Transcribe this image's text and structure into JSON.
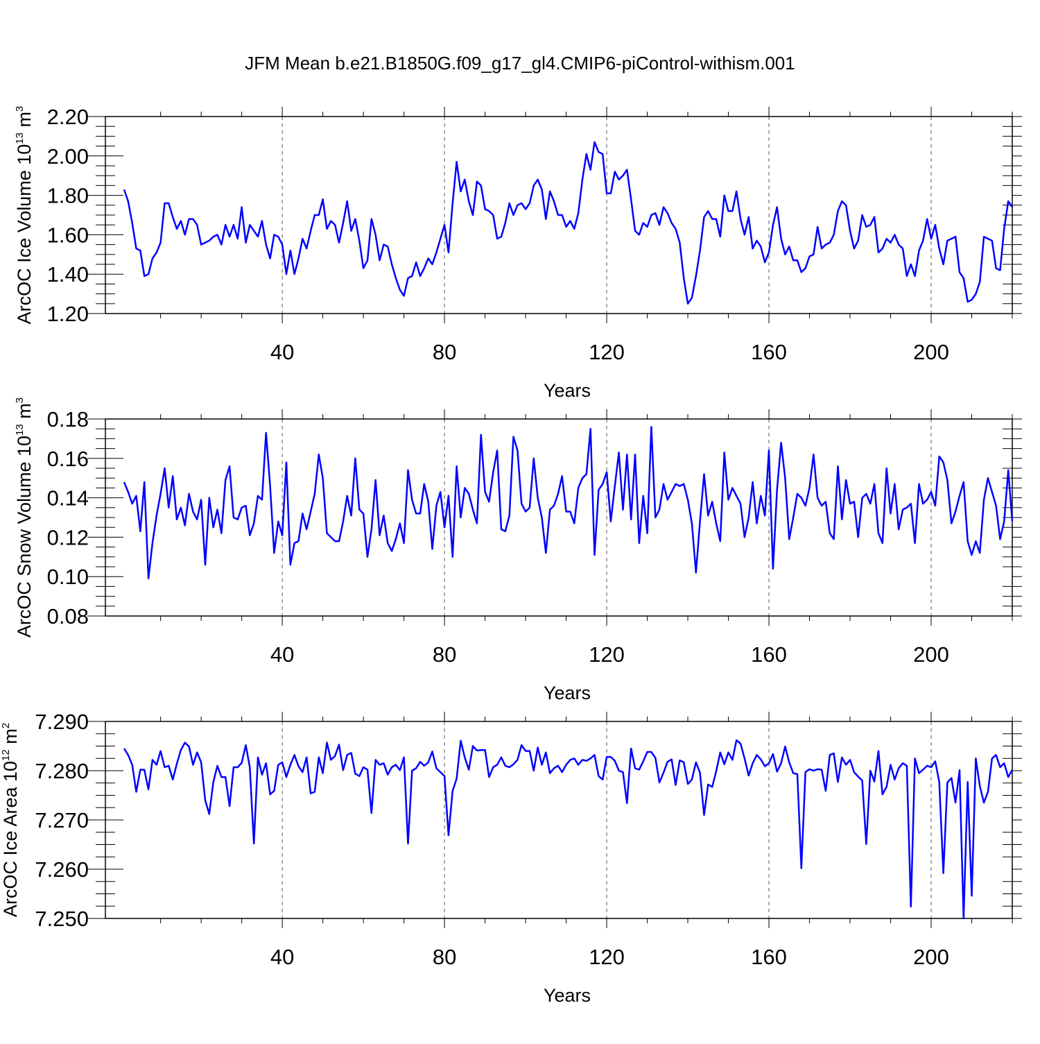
{
  "title": "JFM Mean b.e21.B1850G.f09_g17_gl4.CMIP6-piControl-withism.001",
  "colors": {
    "series": "#0000ff",
    "axis": "#000000",
    "grid": "#555555"
  },
  "chart_data": [
    {
      "type": "line",
      "title": "JFM Mean b.e21.B1850G.f09_g17_gl4.CMIP6-piControl-withism.001",
      "xlabel": "Years",
      "ylabel": {
        "main": "ArcOC Ice Volume 10",
        "exp": "13",
        "unit": " m",
        "unit_exp": "3"
      },
      "xlim": [
        1,
        220
      ],
      "ylim": [
        1.2,
        2.2
      ],
      "x_major_ticks": [
        40,
        80,
        120,
        160,
        200
      ],
      "x_tick_labels": [
        "40",
        "80",
        "120",
        "160",
        "200"
      ],
      "y_tick_labels": [
        "1.20",
        "1.40",
        "1.60",
        "1.80",
        "2.00",
        "2.20"
      ],
      "grid": "dashed vertical at major x ticks",
      "values": [
        1.83,
        1.77,
        1.66,
        1.53,
        1.52,
        1.39,
        1.4,
        1.48,
        1.51,
        1.56,
        1.76,
        1.76,
        1.69,
        1.63,
        1.67,
        1.6,
        1.68,
        1.68,
        1.65,
        1.55,
        1.56,
        1.57,
        1.59,
        1.6,
        1.55,
        1.65,
        1.59,
        1.65,
        1.58,
        1.74,
        1.56,
        1.65,
        1.62,
        1.59,
        1.67,
        1.55,
        1.48,
        1.6,
        1.59,
        1.55,
        1.4,
        1.52,
        1.4,
        1.48,
        1.58,
        1.53,
        1.62,
        1.7,
        1.7,
        1.78,
        1.63,
        1.67,
        1.65,
        1.56,
        1.66,
        1.77,
        1.62,
        1.68,
        1.57,
        1.43,
        1.47,
        1.68,
        1.6,
        1.47,
        1.55,
        1.54,
        1.45,
        1.38,
        1.32,
        1.29,
        1.38,
        1.39,
        1.46,
        1.39,
        1.43,
        1.48,
        1.45,
        1.51,
        1.58,
        1.65,
        1.51,
        1.76,
        1.97,
        1.82,
        1.88,
        1.77,
        1.7,
        1.87,
        1.85,
        1.73,
        1.72,
        1.7,
        1.58,
        1.59,
        1.66,
        1.76,
        1.7,
        1.75,
        1.76,
        1.73,
        1.76,
        1.85,
        1.88,
        1.83,
        1.68,
        1.82,
        1.77,
        1.7,
        1.7,
        1.64,
        1.67,
        1.63,
        1.71,
        1.88,
        2.01,
        1.93,
        2.07,
        2.02,
        2.01,
        1.81,
        1.81,
        1.92,
        1.88,
        1.9,
        1.93,
        1.78,
        1.62,
        1.6,
        1.66,
        1.64,
        1.7,
        1.71,
        1.65,
        1.74,
        1.71,
        1.66,
        1.63,
        1.56,
        1.38,
        1.25,
        1.28,
        1.39,
        1.52,
        1.69,
        1.72,
        1.68,
        1.68,
        1.59,
        1.8,
        1.72,
        1.72,
        1.82,
        1.68,
        1.6,
        1.69,
        1.53,
        1.57,
        1.54,
        1.46,
        1.51,
        1.65,
        1.74,
        1.58,
        1.5,
        1.54,
        1.47,
        1.47,
        1.41,
        1.43,
        1.49,
        1.5,
        1.64,
        1.53,
        1.55,
        1.56,
        1.6,
        1.72,
        1.77,
        1.75,
        1.62,
        1.53,
        1.57,
        1.7,
        1.64,
        1.65,
        1.69,
        1.51,
        1.53,
        1.58,
        1.56,
        1.6,
        1.55,
        1.53,
        1.39,
        1.45,
        1.39,
        1.52,
        1.57,
        1.68,
        1.58,
        1.65,
        1.53,
        1.45,
        1.57,
        1.58,
        1.59,
        1.41,
        1.38,
        1.26,
        1.27,
        1.3,
        1.36,
        1.59,
        1.58,
        1.57,
        1.43,
        1.42,
        1.63,
        1.77,
        1.74
      ]
    },
    {
      "type": "line",
      "xlabel": "Years",
      "ylabel": {
        "main": "ArcOC Snow Volume 10",
        "exp": "13",
        "unit": " m",
        "unit_exp": "3"
      },
      "xlim": [
        1,
        220
      ],
      "ylim": [
        0.08,
        0.18
      ],
      "x_major_ticks": [
        40,
        80,
        120,
        160,
        200
      ],
      "x_tick_labels": [
        "40",
        "80",
        "120",
        "160",
        "200"
      ],
      "y_tick_labels": [
        "0.08",
        "0.10",
        "0.12",
        "0.14",
        "0.16",
        "0.18"
      ],
      "grid": "dashed vertical at major x ticks",
      "values": [
        0.148,
        0.143,
        0.137,
        0.141,
        0.123,
        0.148,
        0.099,
        0.117,
        0.131,
        0.142,
        0.155,
        0.135,
        0.151,
        0.129,
        0.135,
        0.126,
        0.142,
        0.133,
        0.129,
        0.139,
        0.106,
        0.14,
        0.125,
        0.134,
        0.122,
        0.149,
        0.156,
        0.13,
        0.129,
        0.135,
        0.136,
        0.121,
        0.127,
        0.141,
        0.139,
        0.173,
        0.146,
        0.112,
        0.128,
        0.121,
        0.158,
        0.106,
        0.117,
        0.118,
        0.132,
        0.124,
        0.133,
        0.142,
        0.162,
        0.15,
        0.122,
        0.12,
        0.118,
        0.118,
        0.128,
        0.141,
        0.131,
        0.16,
        0.134,
        0.132,
        0.11,
        0.124,
        0.149,
        0.121,
        0.131,
        0.117,
        0.113,
        0.119,
        0.127,
        0.117,
        0.154,
        0.139,
        0.132,
        0.132,
        0.147,
        0.138,
        0.114,
        0.136,
        0.143,
        0.125,
        0.141,
        0.11,
        0.156,
        0.13,
        0.145,
        0.142,
        0.134,
        0.127,
        0.172,
        0.143,
        0.138,
        0.153,
        0.164,
        0.124,
        0.123,
        0.131,
        0.171,
        0.164,
        0.137,
        0.133,
        0.135,
        0.16,
        0.14,
        0.13,
        0.112,
        0.134,
        0.136,
        0.142,
        0.151,
        0.133,
        0.133,
        0.127,
        0.145,
        0.15,
        0.152,
        0.175,
        0.111,
        0.144,
        0.147,
        0.153,
        0.128,
        0.146,
        0.163,
        0.134,
        0.162,
        0.129,
        0.162,
        0.117,
        0.141,
        0.122,
        0.176,
        0.13,
        0.134,
        0.147,
        0.139,
        0.143,
        0.147,
        0.146,
        0.147,
        0.139,
        0.127,
        0.102,
        0.128,
        0.152,
        0.131,
        0.138,
        0.127,
        0.118,
        0.163,
        0.139,
        0.145,
        0.141,
        0.137,
        0.12,
        0.13,
        0.148,
        0.127,
        0.141,
        0.131,
        0.164,
        0.104,
        0.144,
        0.168,
        0.15,
        0.119,
        0.13,
        0.142,
        0.14,
        0.136,
        0.145,
        0.162,
        0.14,
        0.136,
        0.138,
        0.122,
        0.119,
        0.156,
        0.129,
        0.149,
        0.137,
        0.138,
        0.12,
        0.14,
        0.142,
        0.137,
        0.147,
        0.122,
        0.117,
        0.155,
        0.132,
        0.147,
        0.124,
        0.134,
        0.135,
        0.137,
        0.117,
        0.147,
        0.137,
        0.139,
        0.143,
        0.136,
        0.161,
        0.158,
        0.149,
        0.127,
        0.133,
        0.141,
        0.148,
        0.118,
        0.111,
        0.118,
        0.112,
        0.139,
        0.15,
        0.143,
        0.136,
        0.119,
        0.128,
        0.154,
        0.128
      ]
    },
    {
      "type": "line",
      "xlabel": "Years",
      "ylabel": {
        "main": "ArcOC Ice Area 10",
        "exp": "12",
        "unit": " m",
        "unit_exp": "2"
      },
      "xlim": [
        1,
        220
      ],
      "ylim": [
        7.25,
        7.29
      ],
      "x_major_ticks": [
        40,
        80,
        120,
        160,
        200
      ],
      "x_tick_labels": [
        "40",
        "80",
        "120",
        "160",
        "200"
      ],
      "y_tick_labels": [
        "7.250",
        "7.260",
        "7.270",
        "7.280",
        "7.290"
      ],
      "grid": "dashed vertical at major x ticks",
      "values": [
        7.2845,
        7.2832,
        7.2812,
        7.2757,
        7.2802,
        7.2802,
        7.2762,
        7.2822,
        7.2812,
        7.284,
        7.2807,
        7.281,
        7.2782,
        7.2814,
        7.2842,
        7.2857,
        7.2849,
        7.2812,
        7.2837,
        7.2817,
        7.274,
        7.2712,
        7.2777,
        7.281,
        7.2787,
        7.2787,
        7.2728,
        7.2807,
        7.2807,
        7.2816,
        7.2852,
        7.2807,
        7.2652,
        7.2827,
        7.2792,
        7.2815,
        7.2752,
        7.2759,
        7.2812,
        7.2817,
        7.2787,
        7.2812,
        7.2832,
        7.2809,
        7.2797,
        7.2827,
        7.2754,
        7.2757,
        7.2827,
        7.2795,
        7.2857,
        7.2822,
        7.283,
        7.2853,
        7.2801,
        7.2832,
        7.2836,
        7.2794,
        7.2789,
        7.2807,
        7.2802,
        7.2714,
        7.2822,
        7.2812,
        7.2815,
        7.2792,
        7.2807,
        7.2812,
        7.2801,
        7.2827,
        7.2652,
        7.28,
        7.2805,
        7.2818,
        7.281,
        7.2817,
        7.2839,
        7.2805,
        7.2797,
        7.2789,
        7.2669,
        7.2759,
        7.2784,
        7.2861,
        7.2827,
        7.2802,
        7.285,
        7.2841,
        7.2842,
        7.2842,
        7.2787,
        7.2807,
        7.2812,
        7.2827,
        7.281,
        7.2807,
        7.2813,
        7.2822,
        7.2852,
        7.284,
        7.284,
        7.28,
        7.2847,
        7.2812,
        7.2837,
        7.2795,
        7.2805,
        7.281,
        7.2797,
        7.2812,
        7.2822,
        7.2825,
        7.2812,
        7.2822,
        7.282,
        7.2825,
        7.2832,
        7.2789,
        7.2782,
        7.2828,
        7.2828,
        7.282,
        7.28,
        7.2797,
        7.2734,
        7.2845,
        7.2805,
        7.2802,
        7.2819,
        7.2838,
        7.2838,
        7.2826,
        7.2776,
        7.2796,
        7.2818,
        7.2823,
        7.2771,
        7.2821,
        7.2817,
        7.2773,
        7.2782,
        7.2817,
        7.2796,
        7.271,
        7.2772,
        7.2767,
        7.2799,
        7.2837,
        7.2813,
        7.2837,
        7.2822,
        7.2862,
        7.2855,
        7.2825,
        7.279,
        7.2815,
        7.2832,
        7.2823,
        7.2809,
        7.2815,
        7.2834,
        7.2798,
        7.2815,
        7.2849,
        7.2817,
        7.2795,
        7.2793,
        7.2602,
        7.2797,
        7.2803,
        7.28,
        7.2803,
        7.2802,
        7.2759,
        7.2832,
        7.2835,
        7.2777,
        7.2827,
        7.2812,
        7.2822,
        7.2797,
        7.2788,
        7.278,
        7.2651,
        7.28,
        7.2778,
        7.284,
        7.2752,
        7.2767,
        7.2812,
        7.2782,
        7.2805,
        7.2815,
        7.281,
        7.2524,
        7.2825,
        7.2795,
        7.2802,
        7.281,
        7.2807,
        7.2819,
        7.2777,
        7.2592,
        7.2776,
        7.2785,
        7.2735,
        7.2801,
        7.25,
        7.2777,
        7.2546,
        7.2825,
        7.2769,
        7.2735,
        7.2757,
        7.2825,
        7.2832,
        7.2807,
        7.2815,
        7.2787,
        7.2802
      ]
    }
  ]
}
